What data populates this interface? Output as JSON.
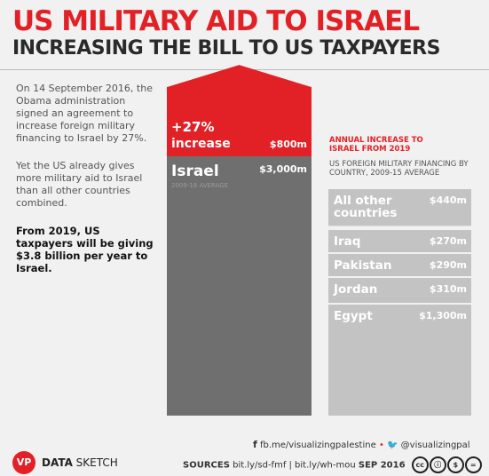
{
  "title": "US MILITARY AID TO ISRAEL",
  "subtitle": "INCREASING THE BILL TO US TAXPAYERS",
  "left_text": {
    "p1": "On 14 September 2016, the Obama administration signed an agreement to increase foreign military financing to Israel by 27%.",
    "p2": "Yet the US already gives more military aid to Israel than all other countries combined.",
    "p3": "From 2019, US taxpayers will be giving $3.8 billion per year to Israel."
  },
  "increase_block": {
    "pct": "+27%",
    "label": "increase",
    "value": "$800m"
  },
  "israel_block": {
    "name": "Israel",
    "sub": "2009-18 AVERAGE",
    "value": "$3,000m"
  },
  "legend": {
    "annual_increase": "ANNUAL INCREASE TO ISRAEL FROM 2019",
    "financing": "US FOREIGN MILITARY FINANCING BY COUNTRY, 2009-15 AVERAGE"
  },
  "colors": {
    "red": "#e22127",
    "dark_grey": "#6f6f6f",
    "light_grey": "#c3c3c3"
  },
  "chart_data": {
    "type": "bar",
    "title": "US MILITARY AID TO ISRAEL",
    "subtitle": "INCREASING THE BILL TO US TAXPAYERS",
    "categories": [
      "Israel",
      "All other countries",
      "Iraq",
      "Pakistan",
      "Jordan",
      "Egypt"
    ],
    "series": [
      {
        "name": "US FOREIGN MILITARY FINANCING BY COUNTRY, 2009-15 AVERAGE",
        "values": [
          3000,
          440,
          270,
          290,
          310,
          1300
        ]
      },
      {
        "name": "ANNUAL INCREASE TO ISRAEL FROM 2019",
        "values": [
          800,
          null,
          null,
          null,
          null,
          null
        ]
      }
    ],
    "value_labels": [
      "$3,000m",
      "$440m",
      "$270m",
      "$290m",
      "$310m",
      "$1,300m"
    ],
    "increase_label": "$800m",
    "unit": "$ million"
  },
  "footer": {
    "facebook": "fb.me/visualizingpalestine",
    "twitter": "@visualizingpal",
    "sources_label": "SOURCES",
    "sources": "bit.ly/sd-fmf | bit.ly/wh-mou",
    "date": "SEP 2016",
    "brand_bold": "DATA",
    "brand_rest": " SKETCH",
    "logo": "VP",
    "icons": [
      "facebook-icon",
      "twitter-icon",
      "creative-commons-icon"
    ]
  }
}
